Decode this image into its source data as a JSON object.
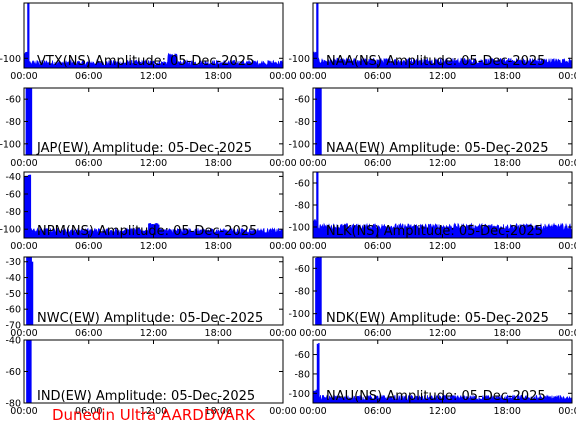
{
  "chart_data": [
    {
      "type": "area",
      "title": "VTX(NS) Amplitude: 05-Dec-2025",
      "ylim": [
        -110,
        -43
      ],
      "yticks": [
        -100
      ],
      "xticks": [
        "00:00",
        "06:00",
        "12:00",
        "18:00",
        "00:00"
      ],
      "x_hours": [
        0,
        24
      ],
      "baseline": -106,
      "noise": 3,
      "features": [
        {
          "x0": 0.0,
          "x1": 0.3,
          "level": -95
        },
        {
          "x0": 0.3,
          "x1": 0.45,
          "level": -43
        },
        {
          "x0": 13.3,
          "x1": 14.2,
          "level": -97
        }
      ],
      "color": "#0000ff"
    },
    {
      "type": "area",
      "title": "NAA(NS) Amplitude: 05-Dec-2025",
      "ylim": [
        -110,
        -43
      ],
      "yticks": [
        -100
      ],
      "xticks": [
        "00:00",
        "06:00",
        "12:00",
        "18:00",
        "00:00"
      ],
      "x_hours": [
        0,
        24
      ],
      "baseline": -104,
      "noise": 3,
      "features": [
        {
          "x0": 0.0,
          "x1": 0.3,
          "level": -95
        },
        {
          "x0": 0.3,
          "x1": 0.45,
          "level": -43
        }
      ],
      "color": "#0000ff"
    },
    {
      "type": "area",
      "title": "JAP(EW) Amplitude: 05-Dec-2025",
      "ylim": [
        -110,
        -50
      ],
      "yticks": [
        -60,
        -80,
        -100
      ],
      "xticks": [
        "00:00",
        "06:00",
        "12:00",
        "18:00",
        "00:00"
      ],
      "x_hours": [
        0,
        24
      ],
      "baseline": null,
      "noise": 4,
      "features": [
        {
          "x0": 0.15,
          "x1": 0.7,
          "level": -50
        }
      ],
      "color": "#0000ff"
    },
    {
      "type": "area",
      "title": "NAA(EW) Amplitude: 05-Dec-2025",
      "ylim": [
        -110,
        -50
      ],
      "yticks": [
        -60,
        -80,
        -100
      ],
      "xticks": [
        "00:00",
        "06:00",
        "12:00",
        "18:00",
        "00:00"
      ],
      "x_hours": [
        0,
        24
      ],
      "baseline": null,
      "noise": 4,
      "features": [
        {
          "x0": 0.2,
          "x1": 0.75,
          "level": -50
        }
      ],
      "color": "#0000ff"
    },
    {
      "type": "area",
      "title": "NPM(NS) Amplitude: 05-Dec-2025",
      "ylim": [
        -110,
        -35
      ],
      "yticks": [
        -40,
        -60,
        -80,
        -100
      ],
      "xticks": [
        "00:00",
        "06:00",
        "12:00",
        "18:00",
        "00:00"
      ],
      "x_hours": [
        0,
        24
      ],
      "baseline": -103,
      "noise": 3,
      "features": [
        {
          "x0": 0.0,
          "x1": 0.6,
          "level": -40
        },
        {
          "x0": 11.5,
          "x1": 12.5,
          "level": -95
        }
      ],
      "color": "#0000ff"
    },
    {
      "type": "area",
      "title": "NLK(NS) Amplitude: 05-Dec-2025",
      "ylim": [
        -110,
        -50
      ],
      "yticks": [
        -60,
        -80,
        -100
      ],
      "xticks": [
        "00:00",
        "06:00",
        "12:00",
        "18:00",
        "00:00"
      ],
      "x_hours": [
        0,
        24
      ],
      "baseline": -101,
      "noise": 3,
      "features": [
        {
          "x0": 0.0,
          "x1": 0.3,
          "level": -95
        },
        {
          "x0": 0.3,
          "x1": 0.45,
          "level": -50
        }
      ],
      "color": "#0000ff"
    },
    {
      "type": "area",
      "title": "NWC(EW) Amplitude: 05-Dec-2025",
      "ylim": [
        -70,
        -27
      ],
      "yticks": [
        -30,
        -40,
        -50,
        -60,
        -70
      ],
      "xticks": [
        "00:00",
        "06:00",
        "12:00",
        "18:00",
        "00:00"
      ],
      "x_hours": [
        0,
        24
      ],
      "baseline": null,
      "noise": 4,
      "features": [
        {
          "x0": 0.2,
          "x1": 0.8,
          "level": -30
        }
      ],
      "color": "#0000ff"
    },
    {
      "type": "area",
      "title": "NDK(EW) Amplitude: 05-Dec-2025",
      "ylim": [
        -110,
        -50
      ],
      "yticks": [
        -60,
        -80,
        -100
      ],
      "xticks": [
        "00:00",
        "06:00",
        "12:00",
        "18:00",
        "00:00"
      ],
      "x_hours": [
        0,
        24
      ],
      "baseline": null,
      "noise": 4,
      "features": [
        {
          "x0": 0.2,
          "x1": 0.75,
          "level": -52
        }
      ],
      "color": "#0000ff"
    },
    {
      "type": "area",
      "title": "IND(EW) Amplitude: 05-Dec-2025",
      "ylim": [
        -80,
        -40
      ],
      "yticks": [
        -40,
        -60,
        -80
      ],
      "xticks": [
        "00:00",
        "06:00",
        "12:00",
        "18:00",
        "00:00"
      ],
      "x_hours": [
        0,
        24
      ],
      "baseline": null,
      "noise": 4,
      "features": [
        {
          "x0": 0.2,
          "x1": 0.65,
          "level": -42
        }
      ],
      "color": "#0000ff"
    },
    {
      "type": "area",
      "title": "NAU(NS) Amplitude: 05-Dec-2025",
      "ylim": [
        -110,
        -45
      ],
      "yticks": [
        -60,
        -80,
        -100
      ],
      "xticks": [
        "00:00",
        "06:00",
        "12:00",
        "18:00",
        "00:00"
      ],
      "x_hours": [
        0,
        24
      ],
      "baseline": -106,
      "noise": 3,
      "features": [
        {
          "x0": 0.0,
          "x1": 0.35,
          "level": -98
        },
        {
          "x0": 0.35,
          "x1": 0.55,
          "level": -50
        }
      ],
      "color": "#0000ff"
    }
  ],
  "footer": {
    "text": "Dunedin Ultra AARDDVARK",
    "color": "#ff0000"
  }
}
